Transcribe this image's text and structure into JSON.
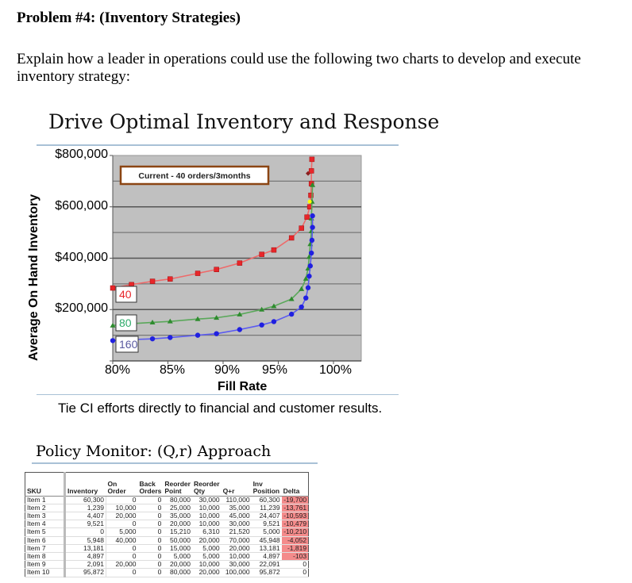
{
  "problem": {
    "title": "Problem #4:  (Inventory Strategies)",
    "prompt_line1": "Explain how a leader in operations could use the following two charts to develop and execute",
    "prompt_line2": "inventory strategy:"
  },
  "slide1": {
    "title": "Drive Optimal  Inventory and Response",
    "caption": "Tie CI efforts directly to financial and customer results.",
    "callout": "Current - 40 orders/3months"
  },
  "chart_data": {
    "type": "line",
    "title": "Drive Optimal Inventory and Response",
    "xlabel": "Fill Rate",
    "ylabel": "Average On Hand Inventory",
    "xlim": [
      0.8,
      1.025
    ],
    "ylim": [
      0,
      800000
    ],
    "x_ticks": [
      "80%",
      "85%",
      "90%",
      "95%",
      "100%"
    ],
    "y_ticks": [
      "$200,000",
      "$400,000",
      "$600,000",
      "$800,000"
    ],
    "grid": true,
    "annotation": {
      "text": "Current - 40 orders/3months",
      "point": {
        "x": 0.977,
        "y": 730000
      }
    },
    "series": [
      {
        "name": "40",
        "color": "#e8262a",
        "marker": "square",
        "x": [
          0.8,
          0.817,
          0.836,
          0.852,
          0.877,
          0.894,
          0.915,
          0.935,
          0.946,
          0.962,
          0.971,
          0.976,
          0.9785,
          0.9795,
          0.98,
          0.98,
          0.9805
        ],
        "y": [
          284000,
          297000,
          310000,
          319000,
          341000,
          356000,
          381000,
          415000,
          432000,
          479000,
          517000,
          560000,
          600000,
          645000,
          690000,
          740000,
          785000
        ]
      },
      {
        "name": "80",
        "color": "#2e8b2e",
        "marker": "triangle",
        "x": [
          0.8,
          0.817,
          0.836,
          0.852,
          0.877,
          0.894,
          0.915,
          0.935,
          0.946,
          0.962,
          0.971,
          0.975,
          0.977,
          0.978,
          0.979,
          0.98,
          0.98,
          0.9805,
          0.981
        ],
        "y": [
          138000,
          145000,
          150000,
          154000,
          163000,
          168000,
          181000,
          200000,
          213000,
          241000,
          280000,
          320000,
          360000,
          405000,
          455000,
          505000,
          555000,
          620000,
          685000
        ]
      },
      {
        "name": "160",
        "color": "#2020e0",
        "marker": "circle",
        "x": [
          0.8,
          0.817,
          0.836,
          0.852,
          0.877,
          0.894,
          0.915,
          0.935,
          0.946,
          0.962,
          0.971,
          0.975,
          0.977,
          0.978,
          0.979,
          0.98,
          0.9805,
          0.981,
          0.981
        ],
        "y": [
          79000,
          83000,
          86000,
          91000,
          100000,
          106000,
          122000,
          140000,
          153000,
          182000,
          210000,
          245000,
          285000,
          330000,
          370000,
          420000,
          470000,
          520000,
          565000
        ]
      }
    ]
  },
  "slide2": {
    "title": "Policy Monitor: (Q,r) Approach",
    "table": {
      "header_top": [
        "",
        "",
        "",
        "Back",
        "Reorder",
        "Reorder",
        "",
        "Inv",
        ""
      ],
      "header_bottom": [
        "SKU",
        "Inventory",
        "On Order",
        "Orders",
        "Point",
        "Qty",
        "Q+r",
        "Position",
        "Delta"
      ],
      "rows": [
        [
          "Item 1",
          "60,300",
          "0",
          "0",
          "80,000",
          "30,000",
          "110,000",
          "60,300",
          "-19,700"
        ],
        [
          "Item 2",
          "1,239",
          "10,000",
          "0",
          "25,000",
          "10,000",
          "35,000",
          "11,239",
          "-13,761"
        ],
        [
          "Item 3",
          "4,407",
          "20,000",
          "0",
          "35,000",
          "10,000",
          "45,000",
          "24,407",
          "-10,593"
        ],
        [
          "Item 4",
          "9,521",
          "0",
          "0",
          "20,000",
          "10,000",
          "30,000",
          "9,521",
          "-10,479"
        ],
        [
          "Item 5",
          "0",
          "5,000",
          "0",
          "15,210",
          "6,310",
          "21,520",
          "5,000",
          "-10,210"
        ],
        [
          "Item 6",
          "5,948",
          "40,000",
          "0",
          "50,000",
          "20,000",
          "70,000",
          "45,948",
          "-4,052"
        ],
        [
          "Item 7",
          "13,181",
          "0",
          "0",
          "15,000",
          "5,000",
          "20,000",
          "13,181",
          "-1,819"
        ],
        [
          "Item 8",
          "4,897",
          "0",
          "0",
          "5,000",
          "5,000",
          "10,000",
          "4,897",
          "-103"
        ],
        [
          "Item 9",
          "2,091",
          "20,000",
          "0",
          "20,000",
          "10,000",
          "30,000",
          "22,091",
          "0"
        ],
        [
          "Item 10",
          "95,872",
          "0",
          "0",
          "80,000",
          "20,000",
          "100,000",
          "95,872",
          "0"
        ]
      ],
      "negative_highlight_color": "#f48b8b"
    }
  }
}
